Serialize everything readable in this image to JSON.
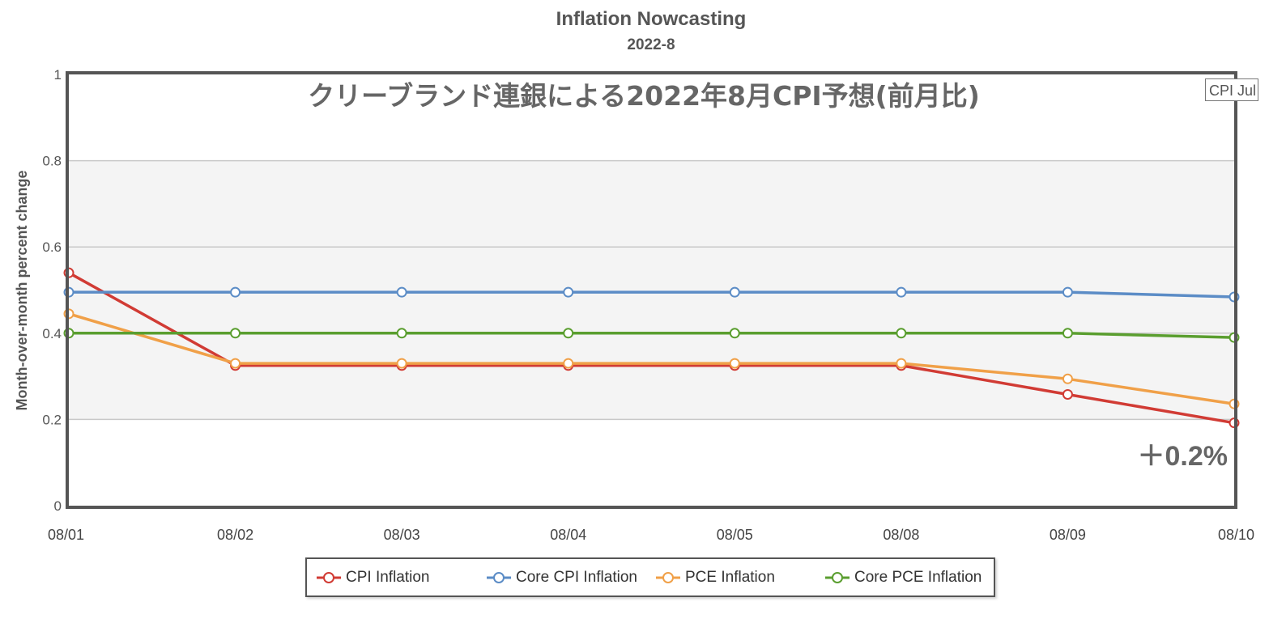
{
  "title": "Inflation Nowcasting",
  "subtitle": "2022-8",
  "overlay_text": "クリーブランド連銀による2022年8月CPI予想(前月比)",
  "value_annotation": "＋0.2%",
  "callout_label": "CPI Jul",
  "chart_data": {
    "type": "line",
    "title": "Inflation Nowcasting",
    "subtitle": "2022-8",
    "ylabel": "Month-over-month percent change",
    "xlabel": "",
    "categories": [
      "08/01",
      "08/02",
      "08/03",
      "08/04",
      "08/05",
      "08/08",
      "08/09",
      "08/10"
    ],
    "ylim": [
      0,
      1
    ],
    "yticks": [
      "0",
      "0.2",
      "0.4",
      "0.6",
      "0.8",
      "1"
    ],
    "grid": true,
    "shaded_band": [
      0.2,
      0.8
    ],
    "legend_position": "bottom",
    "series": [
      {
        "name": "CPI Inflation",
        "color": "#d13b34",
        "values": [
          0.54,
          0.325,
          0.325,
          0.325,
          0.325,
          0.325,
          0.258,
          0.192
        ]
      },
      {
        "name": "Core CPI Inflation",
        "color": "#5b8cc6",
        "values": [
          0.495,
          0.495,
          0.495,
          0.495,
          0.495,
          0.495,
          0.495,
          0.484
        ]
      },
      {
        "name": "PCE Inflation",
        "color": "#f0a048",
        "values": [
          0.445,
          0.33,
          0.33,
          0.33,
          0.33,
          0.33,
          0.294,
          0.236
        ]
      },
      {
        "name": "Core PCE Inflation",
        "color": "#5a9e2f",
        "values": [
          0.4,
          0.4,
          0.4,
          0.4,
          0.4,
          0.4,
          0.4,
          0.39
        ]
      }
    ]
  }
}
